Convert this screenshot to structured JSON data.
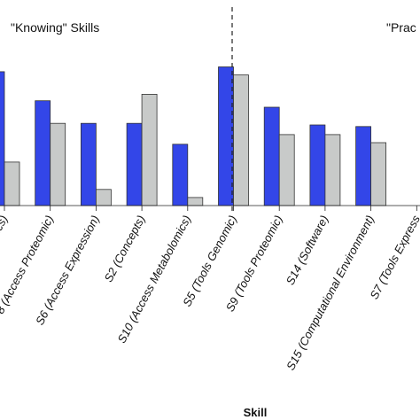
{
  "chart_data": {
    "type": "bar",
    "xlabel": "Skill",
    "ylabel": "",
    "ylim": [
      0,
      1
    ],
    "grid": false,
    "groups": [
      {
        "label": "\"Knowing\" Skills"
      },
      {
        "label": "\"Prac"
      }
    ],
    "categories": [
      "atistics)",
      "8 (Access Proteomic)",
      "S6 (Access Expression)",
      "S2 (Concepts)",
      "S10 (Access Metabolomics)",
      "S5 (Tools Genomic)",
      "S9 (Tools Proteomic)",
      "S14 (Software)",
      "S15 (Computational Environment)",
      "S7 (Tools Express"
    ],
    "series": [
      {
        "values": [
          0.83,
          0.65,
          0.51,
          0.51,
          0.38,
          0.86,
          0.61,
          0.5,
          0.49,
          null
        ]
      },
      {
        "values": [
          0.27,
          0.51,
          0.1,
          0.69,
          0.05,
          0.81,
          0.44,
          0.44,
          0.39,
          null
        ]
      }
    ],
    "colors": [
      "#3346e8",
      "#c8cac9"
    ]
  }
}
